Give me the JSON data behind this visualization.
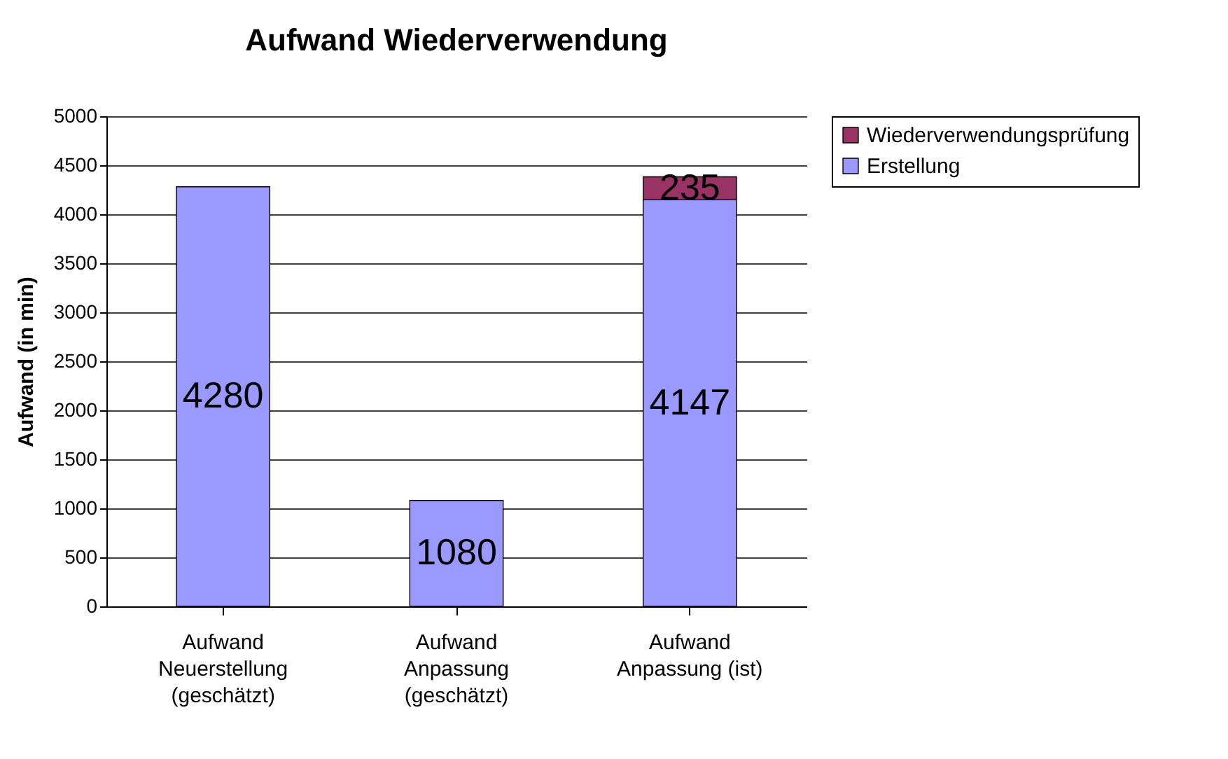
{
  "chart_data": {
    "type": "bar",
    "title": "Aufwand Wiederverwendung",
    "ylabel": "Aufwand (in min)",
    "categories": [
      "Aufwand\nNeuerstellung\n(geschätzt)",
      "Aufwand\nAnpassung\n(geschätzt)",
      "Aufwand\nAnpassung (ist)"
    ],
    "stacked": true,
    "series": [
      {
        "name": "Erstellung",
        "color": "#9999ff",
        "values": [
          4280,
          1080,
          4147
        ]
      },
      {
        "name": "Wiederverwendungsprüfung",
        "color": "#993366",
        "values": [
          null,
          null,
          235
        ]
      }
    ],
    "ylim": [
      0,
      5000
    ],
    "yticks": [
      0,
      500,
      1000,
      1500,
      2000,
      2500,
      3000,
      3500,
      4000,
      4500,
      5000
    ],
    "grid": "y",
    "legend": "right",
    "data_labels": true
  }
}
